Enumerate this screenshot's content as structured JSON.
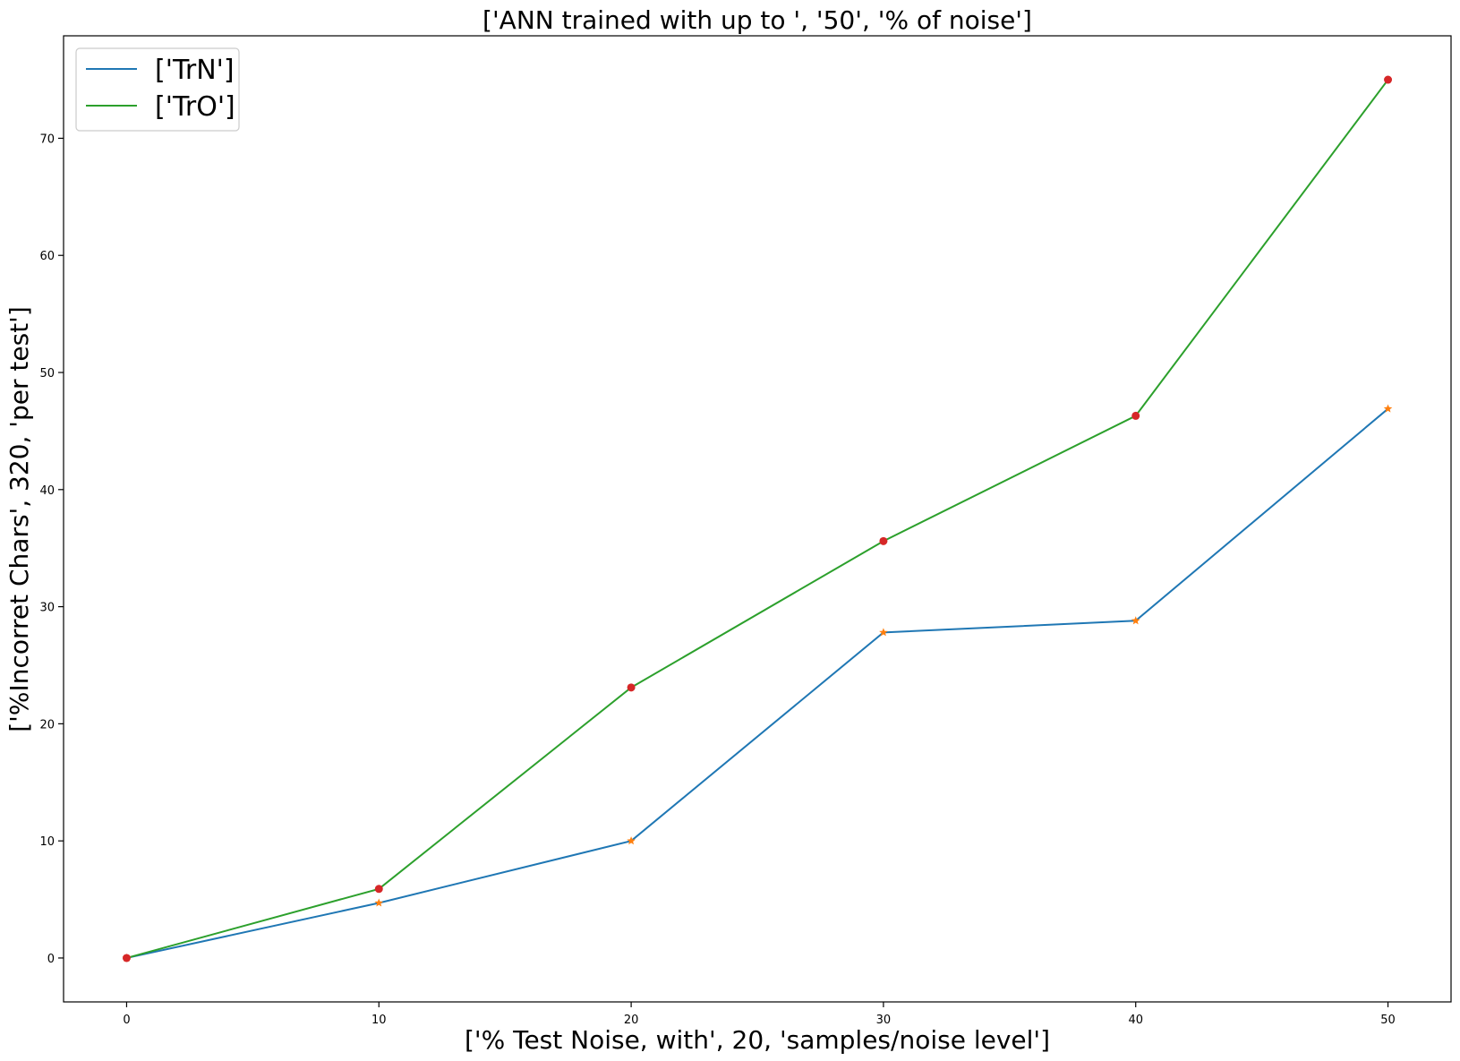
{
  "chart_data": {
    "type": "line",
    "title": "['ANN trained with up to ', '50', '% of noise']",
    "xlabel": "['% Test Noise, with', 20, 'samples/noise level']",
    "ylabel": "['%Incorret Chars', 320, 'per test']",
    "x": [
      0,
      10,
      20,
      30,
      40,
      50
    ],
    "xlim": [
      -2.5,
      52.5
    ],
    "ylim": [
      -3.75,
      78.75
    ],
    "xticks": [
      0,
      10,
      20,
      30,
      40,
      50
    ],
    "yticks": [
      0,
      10,
      20,
      30,
      40,
      50,
      60,
      70
    ],
    "grid": false,
    "legend_position": "upper left",
    "series": [
      {
        "name": "['TrN']",
        "values": [
          0,
          4.7,
          10.0,
          27.8,
          28.8,
          46.9
        ],
        "line_color": "#1f77b4",
        "marker": "star",
        "marker_color": "#ff7f0e"
      },
      {
        "name": "['TrO']",
        "values": [
          0,
          5.9,
          23.1,
          35.6,
          46.3,
          75.0
        ],
        "line_color": "#2ca02c",
        "marker": "circle",
        "marker_color": "#d62728"
      }
    ]
  }
}
